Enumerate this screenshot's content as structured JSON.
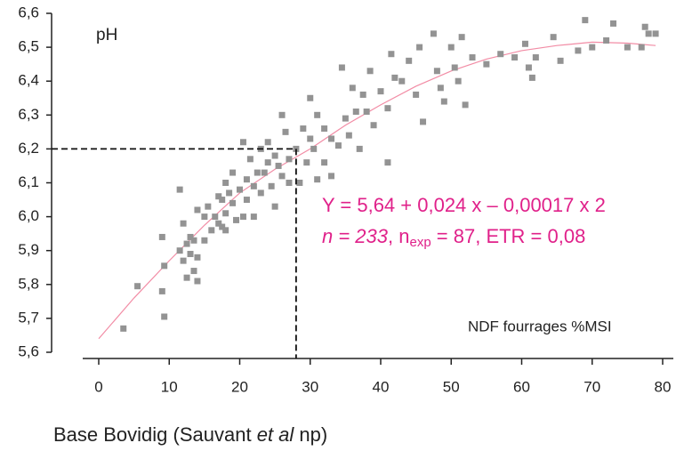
{
  "chart_data": {
    "type": "scatter",
    "y_label": "pH",
    "x_axis_title": "NDF fourrages %MSI",
    "caption": [
      {
        "text": "Base Bovidig (Sauvant "
      },
      {
        "text": "et al",
        "italic": true
      },
      {
        "text": " np)"
      }
    ],
    "equation": "Y = 5,64 + 0,024 x – 0,00017 x 2",
    "stats": [
      {
        "text": "n = 233",
        "italic": true
      },
      {
        "text": ", n"
      },
      {
        "text": "exp",
        "sub": true
      },
      {
        "text": " = 87, ETR = 0,08"
      }
    ],
    "color": "#939393",
    "x": [
      3.5,
      5.5,
      9,
      9,
      9.3,
      9.3,
      11.5,
      11.5,
      12,
      12,
      12.5,
      12.5,
      13,
      13,
      13.5,
      13.5,
      14,
      14,
      14,
      15,
      15,
      15.5,
      16,
      16.5,
      17,
      17,
      17.5,
      17.5,
      18,
      18,
      18,
      18.5,
      19,
      19,
      19.5,
      20,
      20.5,
      20.5,
      21,
      21,
      21.5,
      22,
      22,
      22.5,
      23,
      23,
      23.5,
      24,
      24,
      24.5,
      25,
      25,
      25.5,
      26,
      26,
      26.5,
      27,
      27,
      28,
      28.5,
      29,
      29.5,
      30,
      30,
      30.5,
      31,
      31,
      32,
      32,
      33,
      33,
      34,
      34.5,
      35,
      35.5,
      36,
      36.5,
      37,
      37.5,
      38,
      38.5,
      39,
      40,
      41,
      41,
      41.5,
      42,
      43,
      44,
      45,
      45.5,
      46,
      47.5,
      48,
      48.5,
      49,
      50,
      50.5,
      51,
      51.5,
      52,
      53,
      55,
      57,
      59,
      60.5,
      61,
      61.5,
      62,
      64.5,
      65.5,
      68,
      69,
      70,
      72,
      73,
      75,
      77,
      77.5,
      78,
      79
    ],
    "values": [
      5.67,
      5.795,
      5.94,
      5.78,
      5.855,
      5.705,
      6.08,
      5.9,
      5.98,
      5.87,
      5.92,
      5.82,
      5.94,
      5.89,
      5.93,
      5.84,
      5.88,
      5.81,
      6.02,
      6.0,
      5.93,
      6.03,
      5.96,
      6.0,
      6.06,
      5.98,
      6.05,
      5.97,
      6.1,
      6.01,
      5.96,
      6.07,
      6.13,
      6.04,
      5.99,
      6.08,
      6.22,
      6.0,
      6.11,
      6.05,
      6.17,
      6.09,
      6.0,
      6.13,
      6.2,
      6.07,
      6.13,
      6.22,
      6.16,
      6.09,
      6.18,
      6.03,
      6.15,
      6.3,
      6.12,
      6.25,
      6.17,
      6.1,
      6.2,
      6.1,
      6.26,
      6.16,
      6.23,
      6.35,
      6.2,
      6.11,
      6.3,
      6.26,
      6.16,
      6.23,
      6.12,
      6.21,
      6.44,
      6.29,
      6.24,
      6.38,
      6.31,
      6.2,
      6.36,
      6.31,
      6.43,
      6.27,
      6.37,
      6.32,
      6.16,
      6.48,
      6.41,
      6.4,
      6.46,
      6.36,
      6.5,
      6.28,
      6.54,
      6.43,
      6.38,
      6.34,
      6.5,
      6.44,
      6.4,
      6.53,
      6.33,
      6.47,
      6.45,
      6.48,
      6.47,
      6.51,
      6.44,
      6.41,
      6.47,
      6.53,
      6.46,
      6.49,
      6.58,
      6.5,
      6.52,
      6.57,
      6.5,
      6.5,
      6.56,
      6.54,
      6.54
    ],
    "fit": {
      "color": "#f28ca5",
      "x": [
        0,
        5,
        10,
        15,
        20,
        25,
        30,
        35,
        40,
        45,
        50,
        55,
        60,
        65,
        70,
        75,
        79
      ],
      "values": [
        5.64,
        5.76,
        5.87,
        5.975,
        6.07,
        6.14,
        6.2,
        6.27,
        6.33,
        6.385,
        6.43,
        6.465,
        6.49,
        6.505,
        6.515,
        6.512,
        6.505
      ]
    },
    "reference_x": 28,
    "reference_y": 6.2,
    "xlim": [
      0,
      80
    ],
    "ylim": [
      5.6,
      6.6
    ],
    "xticks": [
      0,
      10,
      20,
      30,
      40,
      50,
      60,
      70,
      80
    ],
    "yticks": [
      {
        "value": 5.6,
        "label": "5,6"
      },
      {
        "value": 5.7,
        "label": "5,7"
      },
      {
        "value": 5.8,
        "label": "5,8"
      },
      {
        "value": 5.9,
        "label": "5,9"
      },
      {
        "value": 6.0,
        "label": "6,0"
      },
      {
        "value": 6.1,
        "label": "6,1"
      },
      {
        "value": 6.2,
        "label": "6,2"
      },
      {
        "value": 6.3,
        "label": "6,3"
      },
      {
        "value": 6.4,
        "label": "6,4"
      },
      {
        "value": 6.5,
        "label": "6,5"
      },
      {
        "value": 6.6,
        "label": "6,6"
      }
    ]
  }
}
